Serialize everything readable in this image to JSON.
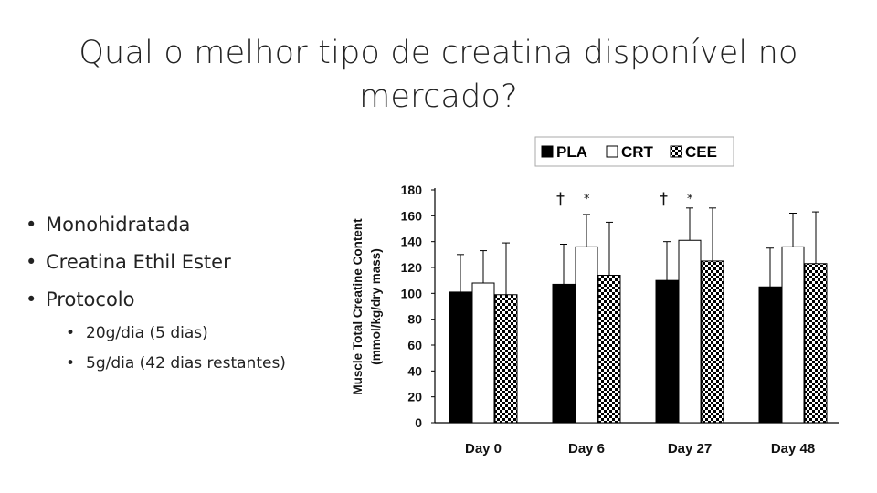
{
  "slide": {
    "title_line1": "Qual o melhor tipo de creatina disponível no",
    "title_line2": "mercado?",
    "bullets": [
      "Monohidratada",
      "Creatina Ethil Ester",
      "Protocolo"
    ],
    "sub_bullets": [
      "20g/dia (5 dias)",
      "5g/dia (42 dias restantes)"
    ]
  },
  "chart_data": {
    "type": "bar",
    "categories": [
      "Day 0",
      "Day 6",
      "Day 27",
      "Day 48"
    ],
    "series": [
      {
        "name": "PLA",
        "values": [
          101,
          107,
          110,
          105
        ],
        "error_upper": [
          130,
          138,
          140,
          135
        ],
        "fill": "solid-black"
      },
      {
        "name": "CRT",
        "values": [
          108,
          136,
          141,
          136
        ],
        "error_upper": [
          133,
          161,
          166,
          162
        ],
        "fill": "white"
      },
      {
        "name": "CEE",
        "values": [
          99,
          114,
          125,
          123
        ],
        "error_upper": [
          139,
          155,
          166,
          163
        ],
        "fill": "black-white-check-pattern"
      }
    ],
    "ylabel_line1": "Muscle Total Creatine Content",
    "ylabel_line2": "(mmol/kg/dry mass)",
    "ylim": [
      0,
      180
    ],
    "yticks": [
      0,
      20,
      40,
      60,
      80,
      100,
      120,
      140,
      160,
      180
    ],
    "annotations": [
      {
        "category": "Day 6",
        "symbols": "† *"
      },
      {
        "category": "Day 27",
        "symbols": "† *"
      }
    ],
    "legend_position": "top",
    "grid": false
  }
}
